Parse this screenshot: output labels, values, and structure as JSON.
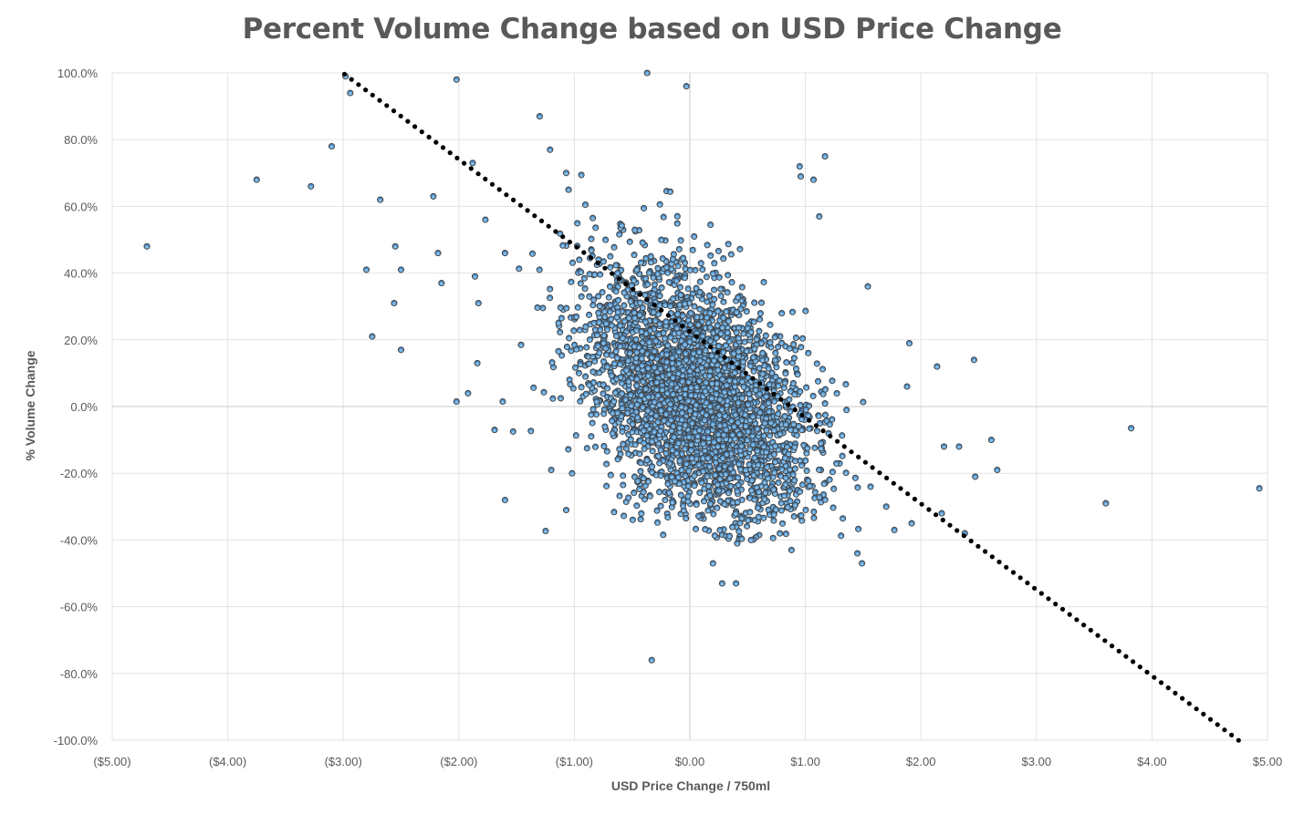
{
  "chart_data": {
    "type": "scatter",
    "title": "Percent Volume Change based on USD Price Change",
    "xlabel": "USD Price Change / 750ml",
    "ylabel": "% Volume Change",
    "xlim": [
      -5,
      5
    ],
    "ylim": [
      -100,
      100
    ],
    "x_ticks": [
      -5,
      -4,
      -3,
      -2,
      -1,
      0,
      1,
      2,
      3,
      4,
      5
    ],
    "x_tick_labels": [
      "($5.00)",
      "($4.00)",
      "($3.00)",
      "($2.00)",
      "($1.00)",
      "$0.00",
      "$1.00",
      "$2.00",
      "$3.00",
      "$4.00",
      "$5.00"
    ],
    "y_ticks": [
      100,
      80,
      60,
      40,
      20,
      0,
      -20,
      -40,
      -60,
      -80,
      -100
    ],
    "y_tick_labels": [
      "100.0%",
      "80.0%",
      "60.0%",
      "40.0%",
      "20.0%",
      "0.0%",
      "-20.0%",
      "-40.0%",
      "-60.0%",
      "-80.0%",
      "-100.0%"
    ],
    "grid": true,
    "legend": "none",
    "marker_color": "#5b9bd5",
    "marker_edge_color": "#404040",
    "trendline_color": "#000000",
    "trendline": {
      "style": "dotted",
      "slope": -25.8,
      "intercept": 22.5,
      "x_start": -2.99,
      "x_end": 4.75
    },
    "outliers": [
      [
        -4.7,
        48
      ],
      [
        -3.75,
        68
      ],
      [
        -3.28,
        66
      ],
      [
        -3.1,
        78
      ],
      [
        -2.98,
        99
      ],
      [
        -2.94,
        94
      ],
      [
        -2.8,
        41
      ],
      [
        -2.68,
        62
      ],
      [
        -2.75,
        21
      ],
      [
        -2.56,
        31
      ],
      [
        -2.55,
        48
      ],
      [
        -2.5,
        41
      ],
      [
        -2.5,
        17
      ],
      [
        -2.22,
        63
      ],
      [
        -2.18,
        46
      ],
      [
        -2.15,
        37
      ],
      [
        -2.02,
        98
      ],
      [
        -2.02,
        1.5
      ],
      [
        -1.92,
        4
      ],
      [
        -1.88,
        73
      ],
      [
        -1.86,
        39
      ],
      [
        -1.84,
        13
      ],
      [
        -1.83,
        31
      ],
      [
        -1.77,
        56
      ],
      [
        -1.69,
        -7
      ],
      [
        -1.62,
        1.5
      ],
      [
        -1.6,
        -28
      ],
      [
        -1.6,
        46
      ],
      [
        -1.53,
        -7.5
      ],
      [
        -1.3,
        87
      ],
      [
        -1.21,
        77
      ],
      [
        -1.2,
        -19
      ],
      [
        -1.07,
        -31
      ],
      [
        -1.02,
        -20
      ],
      [
        -1.07,
        70
      ],
      [
        -1.05,
        65
      ],
      [
        -0.37,
        100
      ],
      [
        -0.33,
        -76
      ],
      [
        -0.03,
        96
      ],
      [
        0.28,
        -53
      ],
      [
        0.4,
        -53
      ],
      [
        0.2,
        -47
      ],
      [
        0.41,
        -41
      ],
      [
        0.53,
        -40
      ],
      [
        0.78,
        -38
      ],
      [
        0.88,
        -43
      ],
      [
        0.95,
        72
      ],
      [
        0.96,
        69
      ],
      [
        1.07,
        68
      ],
      [
        1.12,
        57
      ],
      [
        1.17,
        75
      ],
      [
        1.45,
        -44
      ],
      [
        1.49,
        -47
      ],
      [
        1.54,
        36
      ],
      [
        1.9,
        19
      ],
      [
        1.88,
        6
      ],
      [
        2.14,
        12
      ],
      [
        2.46,
        14
      ],
      [
        2.66,
        -19
      ],
      [
        2.61,
        -10
      ],
      [
        2.47,
        -21
      ],
      [
        2.33,
        -12
      ],
      [
        2.2,
        -12
      ],
      [
        2.18,
        -32
      ],
      [
        3.6,
        -29
      ],
      [
        3.82,
        -6.5
      ],
      [
        4.93,
        -24.5
      ],
      [
        2.38,
        -38
      ],
      [
        1.92,
        -35
      ],
      [
        1.77,
        -37
      ],
      [
        1.7,
        -30
      ]
    ],
    "cluster": {
      "count": 3400,
      "center_x": 0.05,
      "center_y": 3.0,
      "sd_x": 0.48,
      "sd_y": 19.0,
      "correlation": -0.4,
      "seed": 7
    }
  }
}
